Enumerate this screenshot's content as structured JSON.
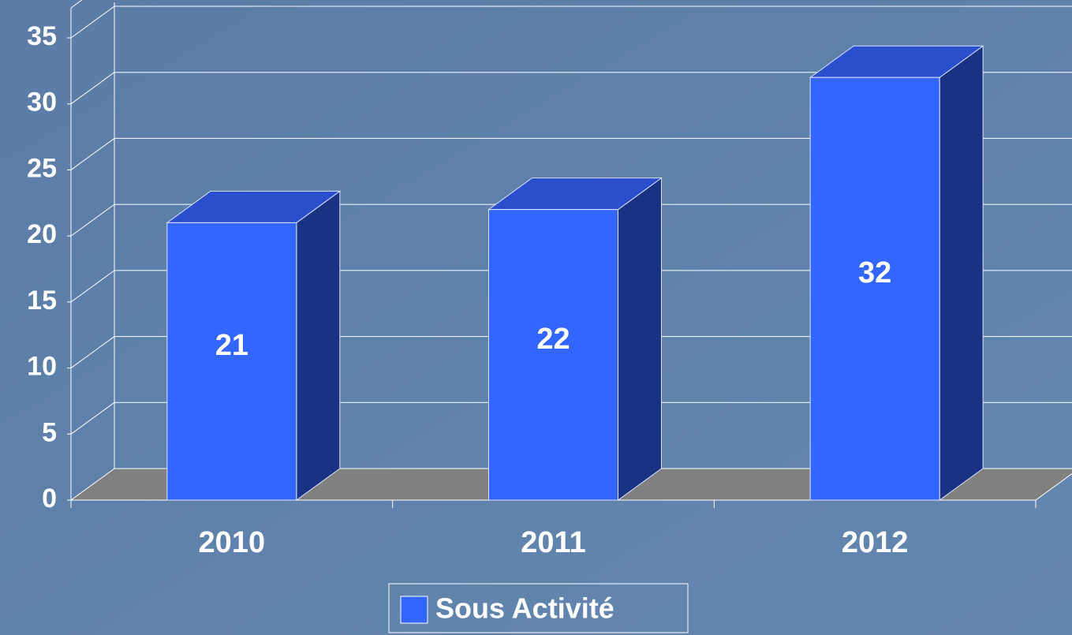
{
  "chart_data": {
    "type": "bar",
    "categories": [
      "2010",
      "2011",
      "2012"
    ],
    "series": [
      {
        "name": "Sous Activité",
        "color": "#3366ff",
        "values": [
          21,
          22,
          32
        ]
      }
    ],
    "ylim": [
      0,
      35
    ],
    "yticks": [
      0,
      5,
      10,
      15,
      20,
      25,
      30,
      35
    ],
    "grid": true,
    "legend": "bottom"
  }
}
